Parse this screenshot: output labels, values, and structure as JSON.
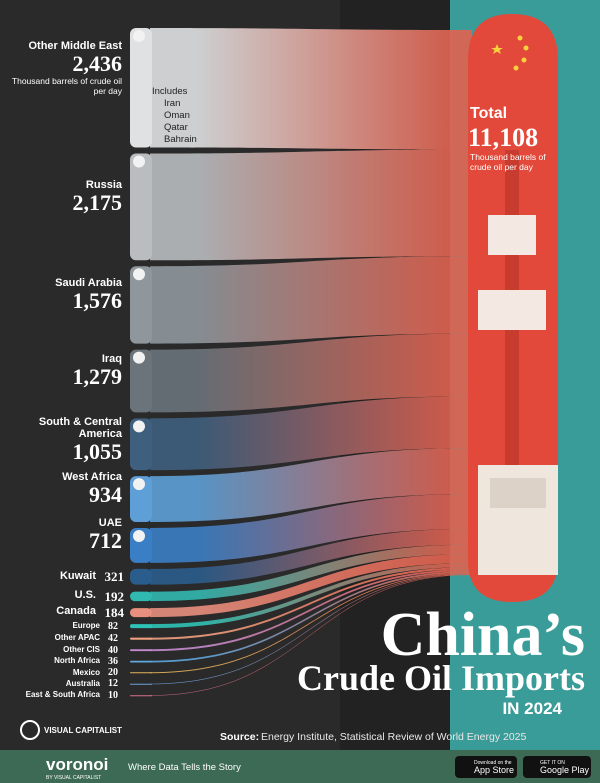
{
  "chart_data": {
    "type": "sankey",
    "title": "China’s",
    "subtitle": "Crude Oil Imports",
    "period": "IN 2024",
    "unit": "Thousand barrels of crude oil per day",
    "categories": [
      "Other Middle East",
      "Russia",
      "Saudi Arabia",
      "Iraq",
      "South & Central America",
      "West Africa",
      "UAE",
      "Kuwait",
      "U.S.",
      "Canada",
      "Europe",
      "Other APAC",
      "Other CIS",
      "North Africa",
      "Mexico",
      "Australia",
      "East & South Africa"
    ],
    "values": [
      2436,
      2175,
      1576,
      1279,
      1055,
      934,
      712,
      321,
      192,
      184,
      82,
      42,
      40,
      36,
      20,
      12,
      10
    ],
    "value_labels": [
      "2,436",
      "2,175",
      "1,576",
      "1,279",
      "1,055",
      "934",
      "712",
      "321",
      "192",
      "184",
      "82",
      "42",
      "40",
      "36",
      "20",
      "12",
      "10"
    ],
    "colors": [
      "#dfe1e2",
      "#b9bdc0",
      "#8f979d",
      "#6b747b",
      "#3e5f7e",
      "#5d9fd6",
      "#3a7fc6",
      "#2a5d8c",
      "#31b8b0",
      "#e88f7e",
      "#2fc2b6",
      "#f0a080",
      "#c58bd0",
      "#5fa8e0",
      "#e3b25a",
      "#6fa0d8",
      "#d86f8a"
    ],
    "target_color": "#e2614e",
    "includes_label": "Includes",
    "includes": [
      "Iran",
      "Oman",
      "Qatar",
      "Bahrain"
    ],
    "total_label": "Total",
    "total": {
      "value": 11108,
      "label": "11,108"
    },
    "source_label": "Source:",
    "source": "Energy Institute, Statistical Review of World Energy 2025"
  },
  "footer": {
    "brand": "VISUAL CAPITALIST",
    "app": "voronoi",
    "app_by": "BY VISUAL CAPITALIST",
    "tagline": "Where Data Tells the Story",
    "app_store_small": "Download on the",
    "app_store": "App Store",
    "google_small": "GET IT ON",
    "google": "Google Play"
  }
}
